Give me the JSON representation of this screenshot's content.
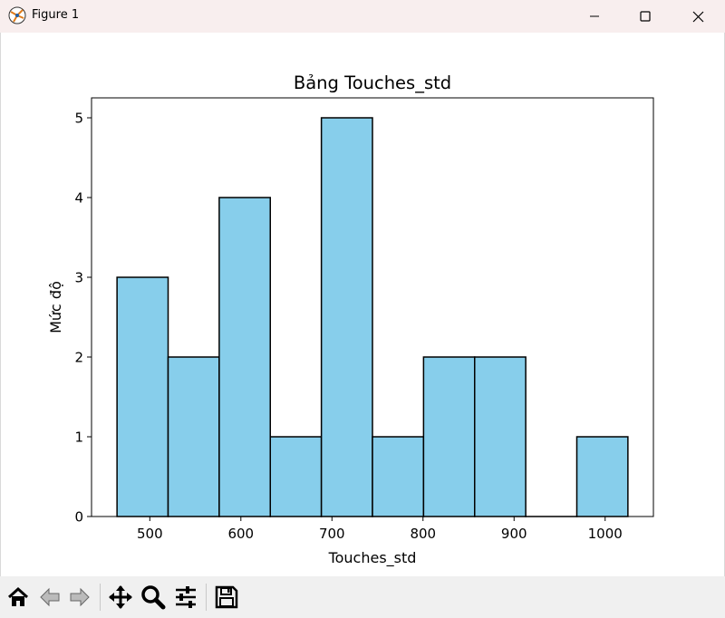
{
  "window": {
    "title": "Figure 1"
  },
  "toolbar": {
    "buttons": [
      "home-icon",
      "back-icon",
      "forward-icon",
      "pan-icon",
      "zoom-icon",
      "configure-subplots-icon",
      "save-icon"
    ]
  },
  "colors": {
    "bar_fill": "#87ceeb",
    "bar_edge": "#000000",
    "titlebar": "#f8eeee",
    "toolbar": "#f0f0f0"
  },
  "chart_data": {
    "type": "bar",
    "title": "Bảng Touches_std",
    "xlabel": "Touches_std",
    "ylabel": "Mức độ",
    "bin_edges": [
      464,
      520.1,
      576.2,
      632.3,
      688.4,
      744.5,
      800.6,
      856.7,
      912.8,
      968.9,
      1025
    ],
    "values": [
      3,
      2,
      4,
      1,
      5,
      1,
      2,
      2,
      0,
      1
    ],
    "xlim": [
      436,
      1053
    ],
    "ylim": [
      0,
      5.25
    ],
    "xticks": [
      500,
      600,
      700,
      800,
      900,
      1000
    ],
    "yticks": [
      0,
      1,
      2,
      3,
      4,
      5
    ],
    "grid": false
  }
}
